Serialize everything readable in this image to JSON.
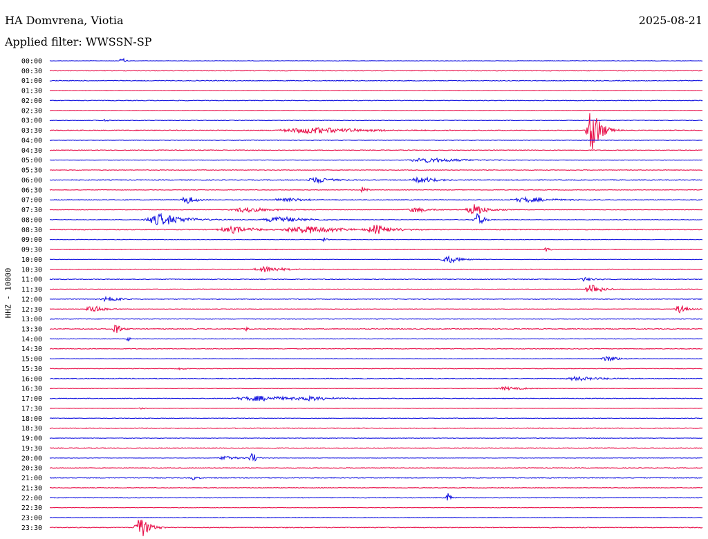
{
  "header": {
    "station": "HA Domvrena, Viotia",
    "date": "2025-08-21",
    "filter": "Applied filter: WWSSN-SP"
  },
  "channel_label": "HHZ - 10000",
  "colors": {
    "even_trace": "#1414e0",
    "odd_trace": "#e8104a"
  },
  "chart_data": {
    "type": "line",
    "title": "",
    "y_tick_labels": [
      "00:00",
      "00:30",
      "01:00",
      "01:30",
      "02:00",
      "02:30",
      "03:00",
      "03:30",
      "04:00",
      "04:30",
      "05:00",
      "05:30",
      "06:00",
      "06:30",
      "07:00",
      "07:30",
      "08:00",
      "08:30",
      "09:00",
      "09:30",
      "10:00",
      "10:30",
      "11:00",
      "11:30",
      "12:00",
      "12:30",
      "13:00",
      "13:30",
      "14:00",
      "14:30",
      "15:00",
      "15:30",
      "16:00",
      "16:30",
      "17:00",
      "17:30",
      "18:00",
      "18:30",
      "19:00",
      "19:30",
      "20:00",
      "20:30",
      "21:00",
      "21:30",
      "22:00",
      "22:30",
      "23:00",
      "23:30"
    ],
    "x_range_minutes": [
      0,
      30
    ],
    "events": [
      {
        "row": 0,
        "t": 0.11,
        "amp": 6,
        "dur": 0.004
      },
      {
        "row": 6,
        "t": 0.085,
        "amp": 3,
        "dur": 0.003
      },
      {
        "row": 7,
        "t": 0.4,
        "amp": 5,
        "dur": 0.06
      },
      {
        "row": 7,
        "t": 0.83,
        "amp": 38,
        "dur": 0.01
      },
      {
        "row": 10,
        "t": 0.58,
        "amp": 4,
        "dur": 0.04
      },
      {
        "row": 12,
        "t": 0.41,
        "amp": 5,
        "dur": 0.02
      },
      {
        "row": 12,
        "t": 0.57,
        "amp": 5,
        "dur": 0.02
      },
      {
        "row": 13,
        "t": 0.48,
        "amp": 7,
        "dur": 0.004
      },
      {
        "row": 14,
        "t": 0.21,
        "amp": 7,
        "dur": 0.01
      },
      {
        "row": 14,
        "t": 0.36,
        "amp": 4,
        "dur": 0.02
      },
      {
        "row": 14,
        "t": 0.73,
        "amp": 4,
        "dur": 0.03
      },
      {
        "row": 15,
        "t": 0.3,
        "amp": 4,
        "dur": 0.03
      },
      {
        "row": 15,
        "t": 0.56,
        "amp": 4,
        "dur": 0.02
      },
      {
        "row": 15,
        "t": 0.65,
        "amp": 9,
        "dur": 0.015
      },
      {
        "row": 16,
        "t": 0.17,
        "amp": 9,
        "dur": 0.03
      },
      {
        "row": 16,
        "t": 0.35,
        "amp": 5,
        "dur": 0.03
      },
      {
        "row": 16,
        "t": 0.655,
        "amp": 10,
        "dur": 0.008
      },
      {
        "row": 17,
        "t": 0.28,
        "amp": 5,
        "dur": 0.03
      },
      {
        "row": 17,
        "t": 0.39,
        "amp": 6,
        "dur": 0.04
      },
      {
        "row": 17,
        "t": 0.5,
        "amp": 7,
        "dur": 0.02
      },
      {
        "row": 18,
        "t": 0.42,
        "amp": 3,
        "dur": 0.004
      },
      {
        "row": 19,
        "t": 0.76,
        "amp": 6,
        "dur": 0.003
      },
      {
        "row": 20,
        "t": 0.61,
        "amp": 6,
        "dur": 0.015
      },
      {
        "row": 21,
        "t": 0.33,
        "amp": 5,
        "dur": 0.02
      },
      {
        "row": 22,
        "t": 0.82,
        "amp": 3,
        "dur": 0.01
      },
      {
        "row": 23,
        "t": 0.83,
        "amp": 9,
        "dur": 0.012
      },
      {
        "row": 24,
        "t": 0.09,
        "amp": 4,
        "dur": 0.015
      },
      {
        "row": 25,
        "t": 0.065,
        "amp": 7,
        "dur": 0.012
      },
      {
        "row": 25,
        "t": 0.965,
        "amp": 6,
        "dur": 0.01
      },
      {
        "row": 27,
        "t": 0.1,
        "amp": 10,
        "dur": 0.006
      },
      {
        "row": 27,
        "t": 0.3,
        "amp": 4,
        "dur": 0.003
      },
      {
        "row": 28,
        "t": 0.12,
        "amp": 4,
        "dur": 0.003
      },
      {
        "row": 30,
        "t": 0.855,
        "amp": 5,
        "dur": 0.012
      },
      {
        "row": 31,
        "t": 0.2,
        "amp": 3,
        "dur": 0.004
      },
      {
        "row": 32,
        "t": 0.81,
        "amp": 3,
        "dur": 0.03
      },
      {
        "row": 33,
        "t": 0.7,
        "amp": 3,
        "dur": 0.02
      },
      {
        "row": 34,
        "t": 0.32,
        "amp": 4,
        "dur": 0.05
      },
      {
        "row": 34,
        "t": 0.4,
        "amp": 4,
        "dur": 0.02
      },
      {
        "row": 35,
        "t": 0.14,
        "amp": 3,
        "dur": 0.004
      },
      {
        "row": 40,
        "t": 0.27,
        "amp": 4,
        "dur": 0.015
      },
      {
        "row": 40,
        "t": 0.31,
        "amp": 9,
        "dur": 0.006
      },
      {
        "row": 42,
        "t": 0.22,
        "amp": 4,
        "dur": 0.005
      },
      {
        "row": 44,
        "t": 0.61,
        "amp": 7,
        "dur": 0.004
      },
      {
        "row": 47,
        "t": 0.138,
        "amp": 20,
        "dur": 0.01
      }
    ]
  }
}
